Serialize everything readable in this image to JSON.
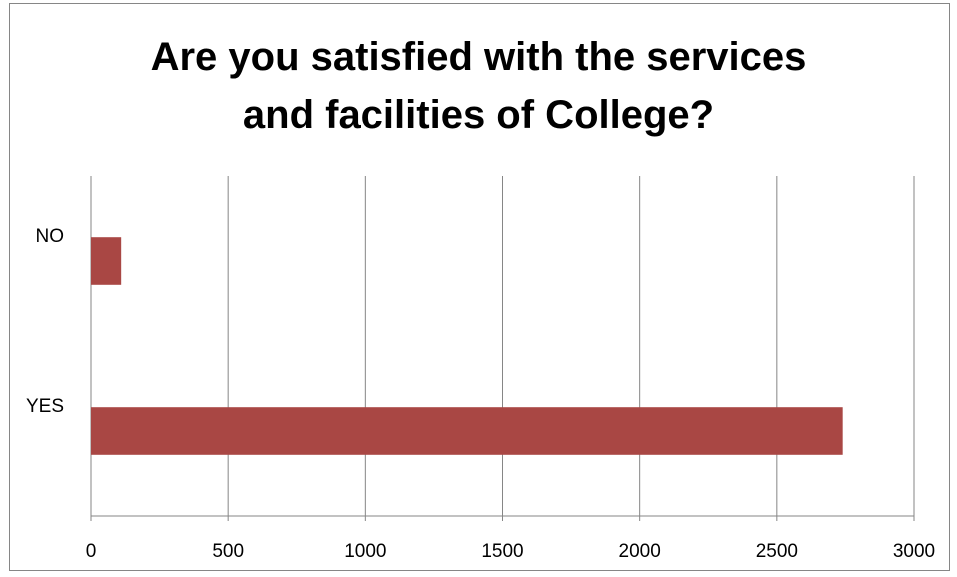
{
  "chart_data": {
    "type": "bar",
    "orientation": "horizontal",
    "title_lines": [
      "Are you satisfied with the services",
      "and facilities of College?"
    ],
    "categories": [
      "NO",
      "YES"
    ],
    "values": [
      110,
      2740
    ],
    "xlim": [
      0,
      3000
    ],
    "x_ticks": [
      "0",
      "500",
      "1000",
      "1500",
      "2000",
      "2500",
      "3000"
    ],
    "bar_color": "#A94744",
    "grid": "vertical",
    "legend": "none"
  }
}
